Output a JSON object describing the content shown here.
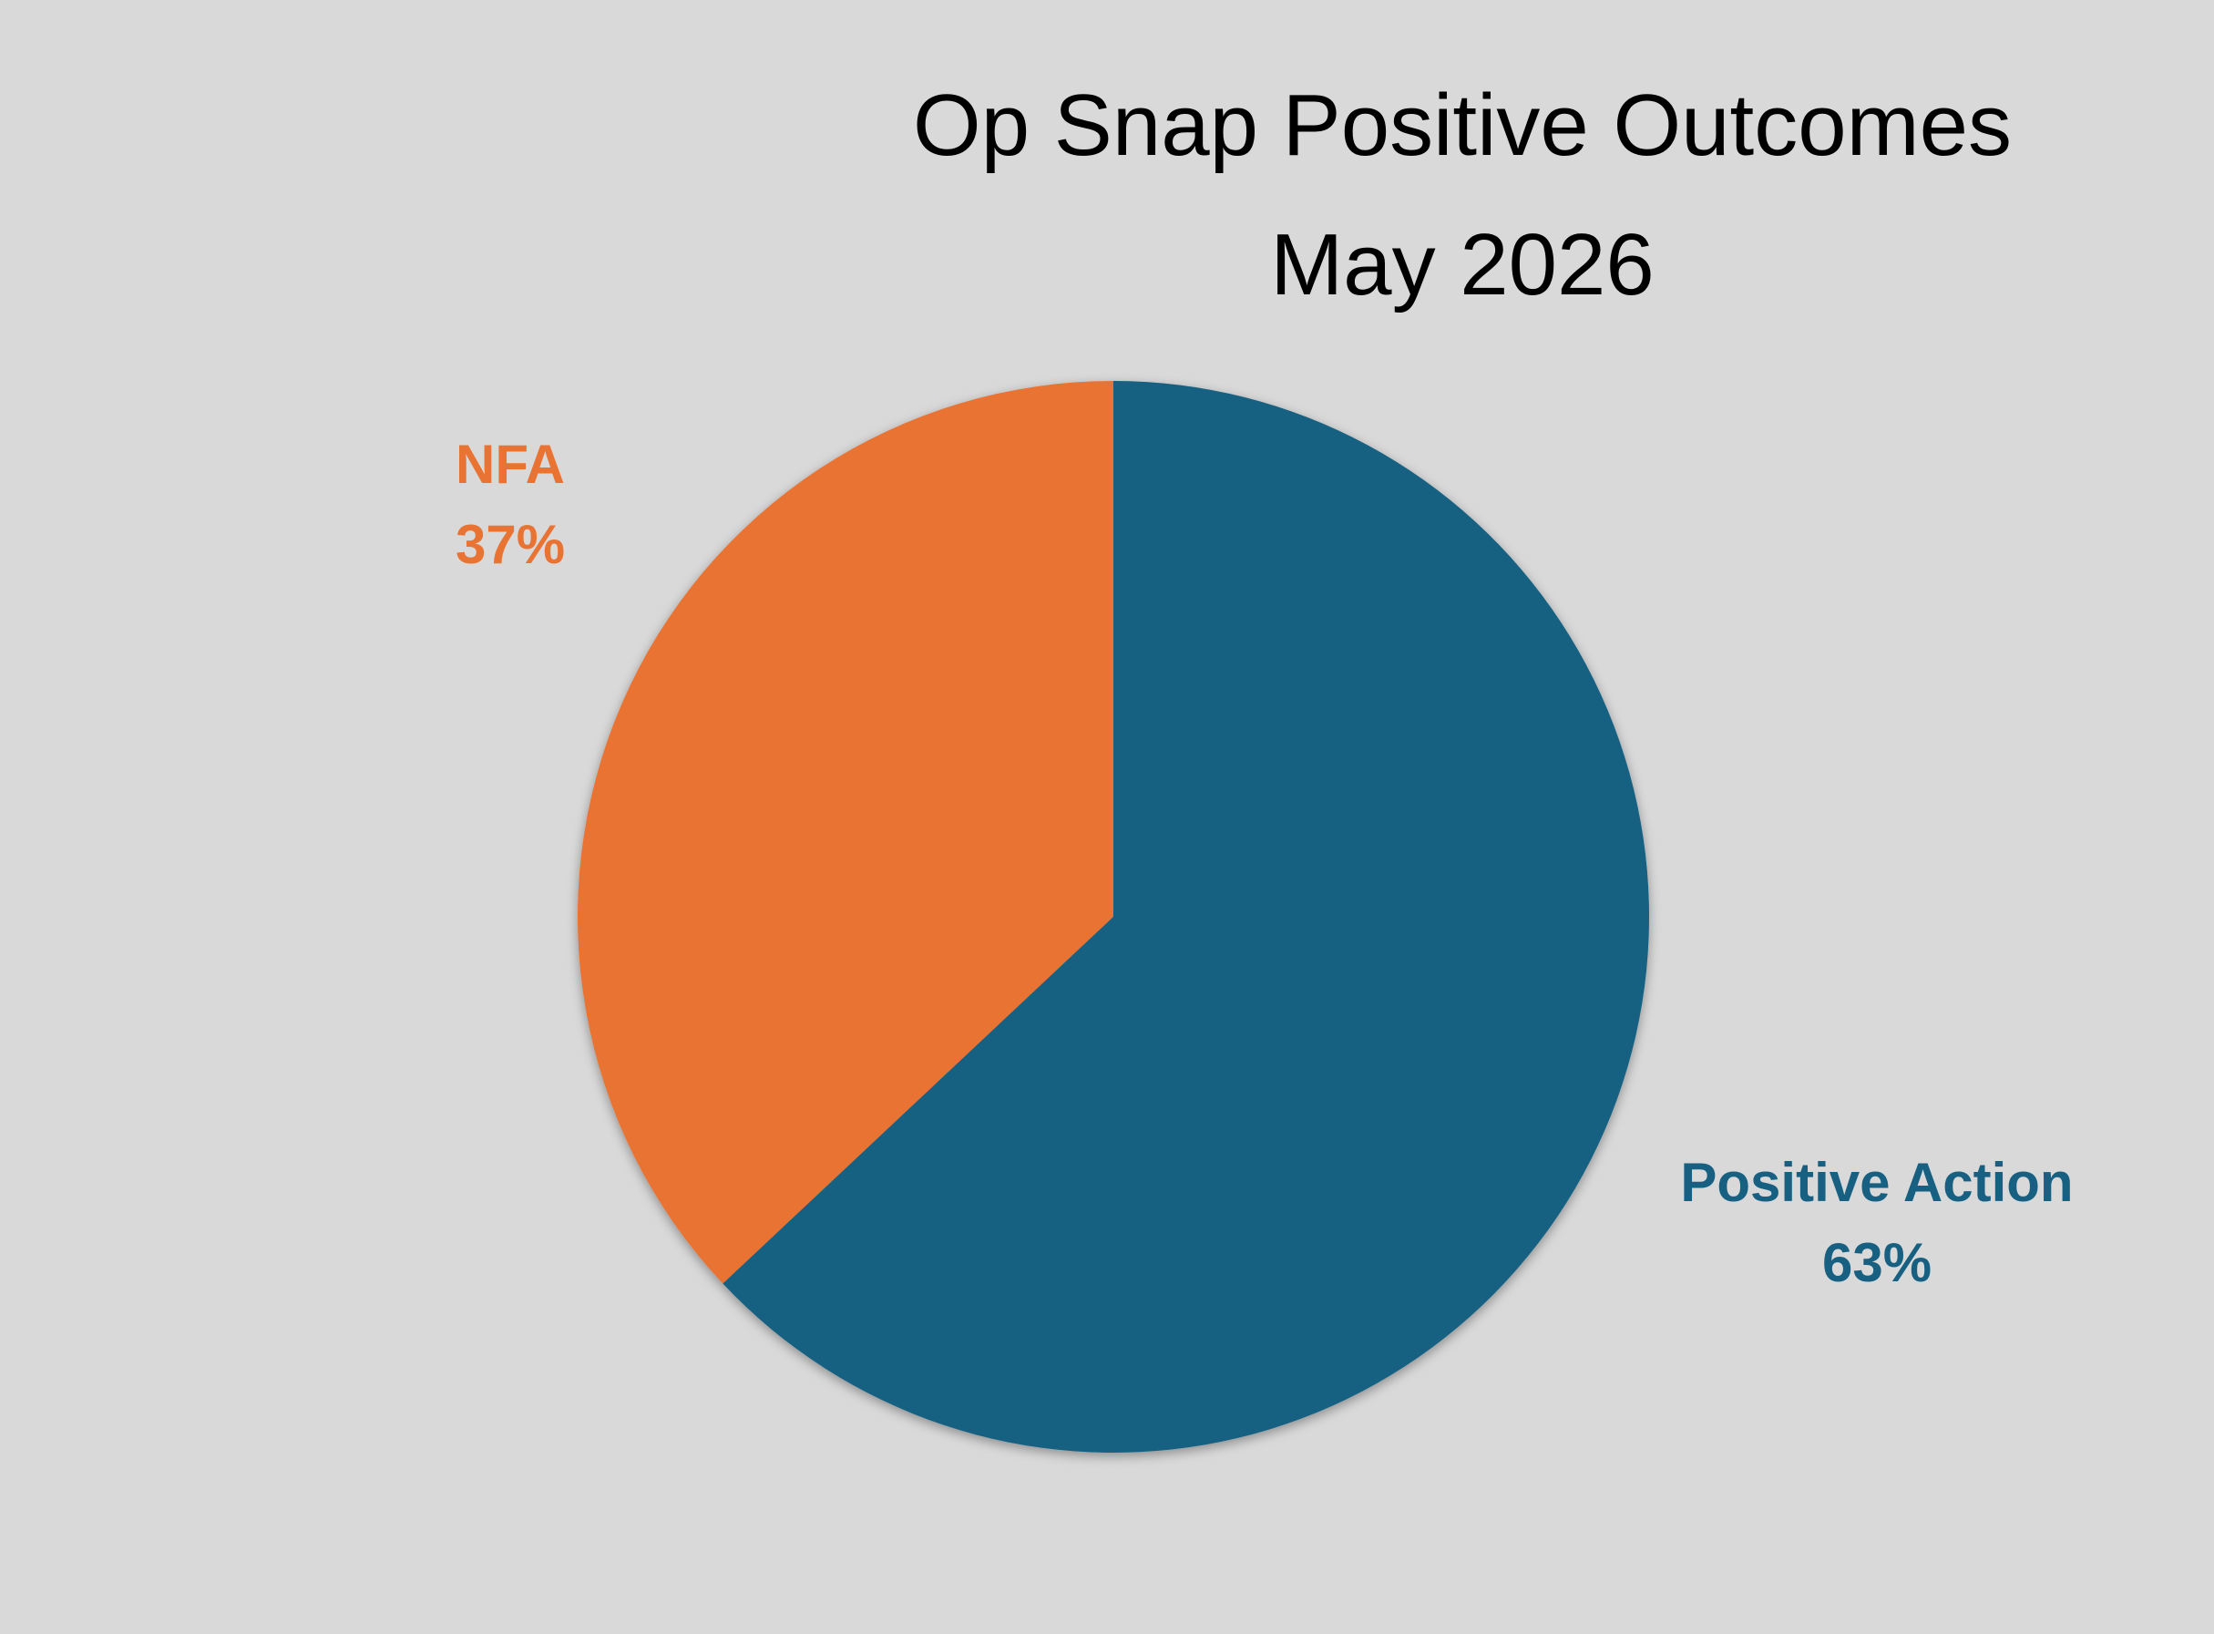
{
  "chart_data": {
    "type": "pie",
    "title": "Op Snap Positive Outcomes",
    "subtitle": "May 2026",
    "slices": [
      {
        "name": "NFA",
        "value": 37,
        "label": "37%",
        "color": "#e87333"
      },
      {
        "name": "Positive Action",
        "value": 63,
        "label": "63%",
        "color": "#176082"
      }
    ],
    "legend": "none",
    "start_angle_deg": 0,
    "direction": "counterclockwise"
  },
  "background_color": "#d9d9d9"
}
